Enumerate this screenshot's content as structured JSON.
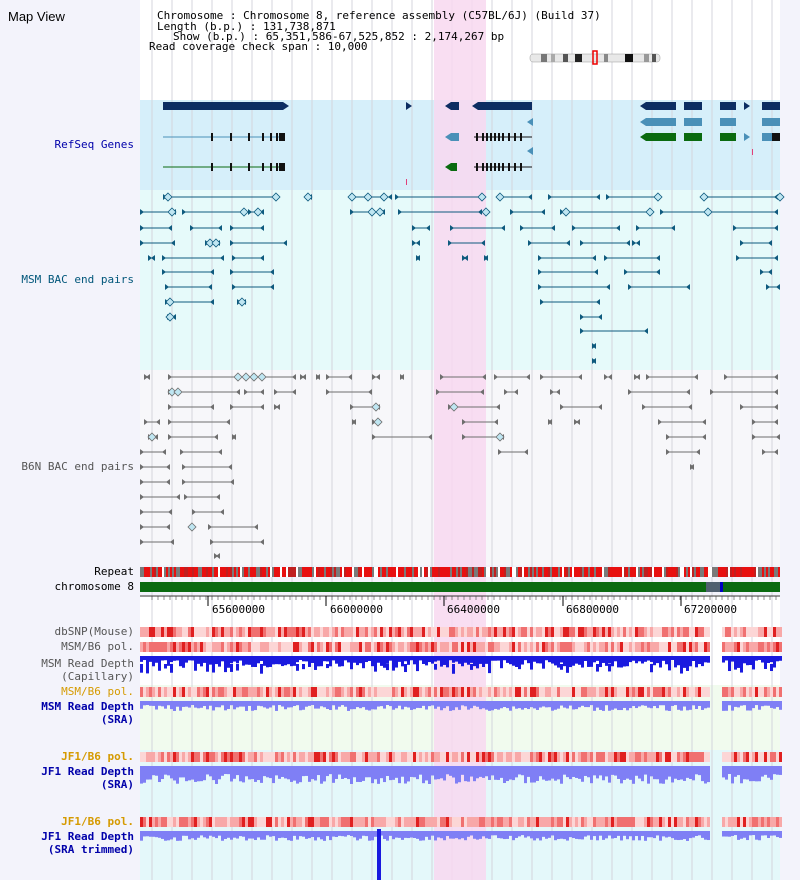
{
  "app": {
    "title": "Map View"
  },
  "info": {
    "chromosome_label": "Chromosome    : Chromosome 8, reference assembly (C57BL/6J) (Build 37)",
    "length_label": "Length (b.p.) : 131,738,871",
    "show_label": "Show (b.p.) : 65,351,586-67,525,852 : 2,174,267 bp",
    "coverage_label": "Read coverage check span : 10,000"
  },
  "tracks": {
    "refseq": "RefSeq Genes",
    "msm_bac": "MSM BAC end pairs",
    "b6n_bac": "B6N BAC end pairs",
    "repeat": "Repeat",
    "chromosome": "chromosome 8",
    "dbsnp": "dbSNP(Mouse)",
    "msm_b6_pol_1": "MSM/B6 pol.",
    "msm_depth_cap_1": "MSM Read Depth",
    "msm_depth_cap_2": "(Capillary)",
    "msm_b6_pol_2": "MSM/B6 pol.",
    "msm_depth_sra_1": "MSM Read Depth",
    "msm_depth_sra_2": "(SRA)",
    "jf1_b6_pol_1": "JF1/B6 pol.",
    "jf1_depth_sra_1": "JF1 Read Depth",
    "jf1_depth_sra_2": "(SRA)",
    "jf1_b6_pol_2": "JF1/B6 pol.",
    "jf1_depth_trim_1": "JF1 Read Depth",
    "jf1_depth_trim_2": "(SRA trimmed)"
  },
  "axis": {
    "ticks": [
      "65600000",
      "66000000",
      "66400000",
      "66800000",
      "67200000"
    ]
  },
  "colors": {
    "highlight": "#f8d8f0",
    "refseq_dark": "#0d2d62",
    "refseq_mid": "#4a90b8",
    "refseq_green": "#0a6a10",
    "msm_bac": "#0e5a7e",
    "b6n_bac": "#6e6e6e",
    "snp_red": "#e8202a",
    "depth_blue": "#1a1adf",
    "depth_light": "#7f7ff5",
    "label_blue": "#0000aa",
    "label_teal": "#00567a",
    "label_orange": "#d59a00",
    "chrom_green": "#0a6a10"
  }
}
